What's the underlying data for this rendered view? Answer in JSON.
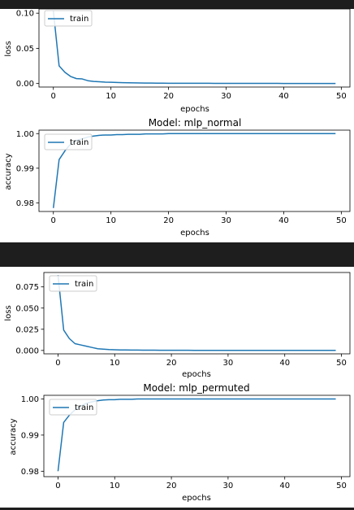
{
  "colors": {
    "series": "#1f77b4",
    "dark_band": "#1e1e1e",
    "legend_border": "#cccccc"
  },
  "charts": [
    {
      "title": "",
      "xlabel": "epochs",
      "ylabel": "loss",
      "legend_text": "train",
      "xticks": [
        "0",
        "10",
        "20",
        "30",
        "40",
        "50"
      ],
      "yticks": [
        "0.00",
        "0.05",
        "0.10"
      ]
    },
    {
      "title": "Model: mlp_normal",
      "xlabel": "epochs",
      "ylabel": "accuracy",
      "legend_text": "train",
      "xticks": [
        "0",
        "10",
        "20",
        "30",
        "40",
        "50"
      ],
      "yticks": [
        "0.98",
        "0.99",
        "1.00"
      ]
    },
    {
      "title": "",
      "xlabel": "epochs",
      "ylabel": "loss",
      "legend_text": "train",
      "xticks": [
        "0",
        "10",
        "20",
        "30",
        "40",
        "50"
      ],
      "yticks": [
        "0.000",
        "0.025",
        "0.050",
        "0.075"
      ]
    },
    {
      "title": "Model: mlp_permuted",
      "xlabel": "epochs",
      "ylabel": "accuracy",
      "legend_text": "train",
      "xticks": [
        "0",
        "10",
        "20",
        "30",
        "40",
        "50"
      ],
      "yticks": [
        "0.98",
        "0.99",
        "1.00"
      ]
    }
  ],
  "chart_data": [
    {
      "type": "line",
      "xlabel": "epochs",
      "ylabel": "loss",
      "xlim": [
        -2.5,
        51.5
      ],
      "ylim": [
        -0.005,
        0.106
      ],
      "xticks": [
        0,
        10,
        20,
        30,
        40,
        50
      ],
      "yticks": [
        0.0,
        0.05,
        0.1
      ],
      "legend": "top-left",
      "grid": false,
      "series": [
        {
          "name": "train",
          "x": [
            0,
            1,
            2,
            3,
            4,
            5,
            6,
            7,
            8,
            9,
            10,
            11,
            12,
            13,
            14,
            15,
            16,
            17,
            18,
            19,
            20,
            21,
            22,
            23,
            24,
            25,
            26,
            27,
            28,
            29,
            30,
            31,
            32,
            33,
            34,
            35,
            36,
            37,
            38,
            39,
            40,
            41,
            42,
            43,
            44,
            45,
            46,
            47,
            48,
            49
          ],
          "y": [
            0.103,
            0.025,
            0.016,
            0.01,
            0.007,
            0.0065,
            0.004,
            0.003,
            0.0025,
            0.002,
            0.0018,
            0.0015,
            0.0012,
            0.001,
            0.0009,
            0.0008,
            0.0007,
            0.0006,
            0.0005,
            0.0005,
            0.0004,
            0.0004,
            0.0004,
            0.0003,
            0.0003,
            0.0003,
            0.0003,
            0.0003,
            0.0002,
            0.0002,
            0.0002,
            0.0002,
            0.0002,
            0.0002,
            0.0002,
            0.0002,
            0.0002,
            0.0002,
            0.0002,
            0.0002,
            0.0001,
            0.0001,
            0.0001,
            0.0001,
            0.0001,
            0.0001,
            0.0001,
            0.0001,
            0.0001,
            0.0001
          ]
        }
      ]
    },
    {
      "type": "line",
      "title": "Model: mlp_normal",
      "xlabel": "epochs",
      "ylabel": "accuracy",
      "xlim": [
        -2.5,
        51.5
      ],
      "ylim": [
        0.9775,
        1.001
      ],
      "xticks": [
        0,
        10,
        20,
        30,
        40,
        50
      ],
      "yticks": [
        0.98,
        0.99,
        1.0
      ],
      "legend": "top-left",
      "grid": false,
      "series": [
        {
          "name": "train",
          "x": [
            0,
            1,
            2,
            3,
            4,
            5,
            6,
            7,
            8,
            9,
            10,
            11,
            12,
            13,
            14,
            15,
            16,
            17,
            18,
            19,
            20,
            21,
            22,
            23,
            24,
            25,
            26,
            27,
            28,
            29,
            30,
            31,
            32,
            33,
            34,
            35,
            36,
            37,
            38,
            39,
            40,
            41,
            42,
            43,
            44,
            45,
            46,
            47,
            48,
            49
          ],
          "y": [
            0.9785,
            0.9925,
            0.995,
            0.997,
            0.998,
            0.9985,
            0.999,
            0.9993,
            0.9995,
            0.9996,
            0.9996,
            0.9997,
            0.9997,
            0.9998,
            0.9998,
            0.9998,
            0.9999,
            0.9999,
            0.9999,
            0.9999,
            1.0,
            1.0,
            1.0,
            1.0,
            1.0,
            1.0,
            1.0,
            1.0,
            1.0,
            1.0,
            1.0,
            1.0,
            1.0,
            1.0,
            1.0,
            1.0,
            1.0,
            1.0,
            1.0,
            1.0,
            1.0,
            1.0,
            1.0,
            1.0,
            1.0,
            1.0,
            1.0,
            1.0,
            1.0,
            1.0
          ]
        }
      ]
    },
    {
      "type": "line",
      "xlabel": "epochs",
      "ylabel": "loss",
      "xlim": [
        -2.5,
        51.5
      ],
      "ylim": [
        -0.004,
        0.092
      ],
      "xticks": [
        0,
        10,
        20,
        30,
        40,
        50
      ],
      "yticks": [
        0.0,
        0.025,
        0.05,
        0.075
      ],
      "legend": "top-left",
      "grid": false,
      "series": [
        {
          "name": "train",
          "x": [
            0,
            1,
            2,
            3,
            4,
            5,
            6,
            7,
            8,
            9,
            10,
            11,
            12,
            13,
            14,
            15,
            16,
            17,
            18,
            19,
            20,
            21,
            22,
            23,
            24,
            25,
            26,
            27,
            28,
            29,
            30,
            31,
            32,
            33,
            34,
            35,
            36,
            37,
            38,
            39,
            40,
            41,
            42,
            43,
            44,
            45,
            46,
            47,
            48,
            49
          ],
          "y": [
            0.089,
            0.024,
            0.014,
            0.008,
            0.0065,
            0.005,
            0.0035,
            0.002,
            0.0015,
            0.001,
            0.0008,
            0.0006,
            0.0005,
            0.0004,
            0.0004,
            0.0003,
            0.0003,
            0.0003,
            0.0002,
            0.0002,
            0.0002,
            0.0002,
            0.0002,
            0.0002,
            0.0001,
            0.0001,
            0.0001,
            0.0001,
            0.0001,
            0.0001,
            0.0001,
            0.0001,
            0.0001,
            0.0001,
            0.0001,
            0.0001,
            0.0001,
            0.0001,
            0.0001,
            0.0001,
            0.0001,
            0.0001,
            0.0001,
            0.0001,
            0.0001,
            0.0001,
            0.0001,
            0.0001,
            0.0001,
            0.0001
          ]
        }
      ]
    },
    {
      "type": "line",
      "title": "Model: mlp_permuted",
      "xlabel": "epochs",
      "ylabel": "accuracy",
      "xlim": [
        -2.5,
        51.5
      ],
      "ylim": [
        0.9785,
        1.001
      ],
      "xticks": [
        0,
        10,
        20,
        30,
        40,
        50
      ],
      "yticks": [
        0.98,
        0.99,
        1.0
      ],
      "legend": "top-left",
      "grid": false,
      "series": [
        {
          "name": "train",
          "x": [
            0,
            1,
            2,
            3,
            4,
            5,
            6,
            7,
            8,
            9,
            10,
            11,
            12,
            13,
            14,
            15,
            16,
            17,
            18,
            19,
            20,
            21,
            22,
            23,
            24,
            25,
            26,
            27,
            28,
            29,
            30,
            31,
            32,
            33,
            34,
            35,
            36,
            37,
            38,
            39,
            40,
            41,
            42,
            43,
            44,
            45,
            46,
            47,
            48,
            49
          ],
          "y": [
            0.98,
            0.9935,
            0.9955,
            0.997,
            0.998,
            0.9988,
            0.9992,
            0.9995,
            0.9997,
            0.9998,
            0.9998,
            0.9999,
            0.9999,
            0.9999,
            1.0,
            1.0,
            1.0,
            1.0,
            1.0,
            1.0,
            1.0,
            1.0,
            1.0,
            1.0,
            1.0,
            1.0,
            1.0,
            1.0,
            1.0,
            1.0,
            1.0,
            1.0,
            1.0,
            1.0,
            1.0,
            1.0,
            1.0,
            1.0,
            1.0,
            1.0,
            1.0,
            1.0,
            1.0,
            1.0,
            1.0,
            1.0,
            1.0,
            1.0,
            1.0,
            1.0
          ]
        }
      ]
    }
  ]
}
